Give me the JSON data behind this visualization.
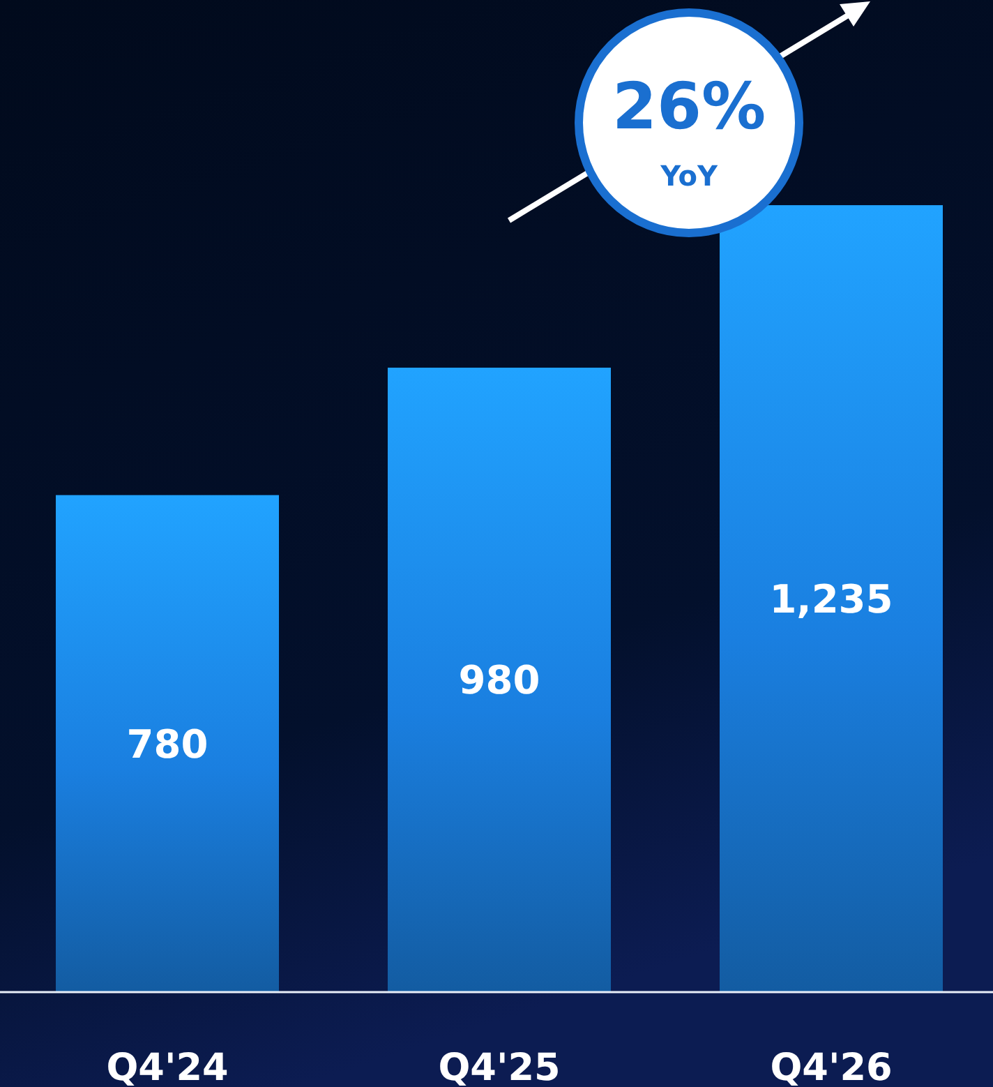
{
  "chart_data": {
    "type": "bar",
    "categories": [
      "Q4'24",
      "Q4'25",
      "Q4'26"
    ],
    "values": [
      780,
      980,
      1235
    ],
    "color": "#1a7fe0",
    "ylim": [
      0,
      1557
    ],
    "data_labels": true,
    "value_labels": [
      "780",
      "980",
      "1,235"
    ],
    "annotations": [
      "26%",
      "YoY"
    ]
  }
}
